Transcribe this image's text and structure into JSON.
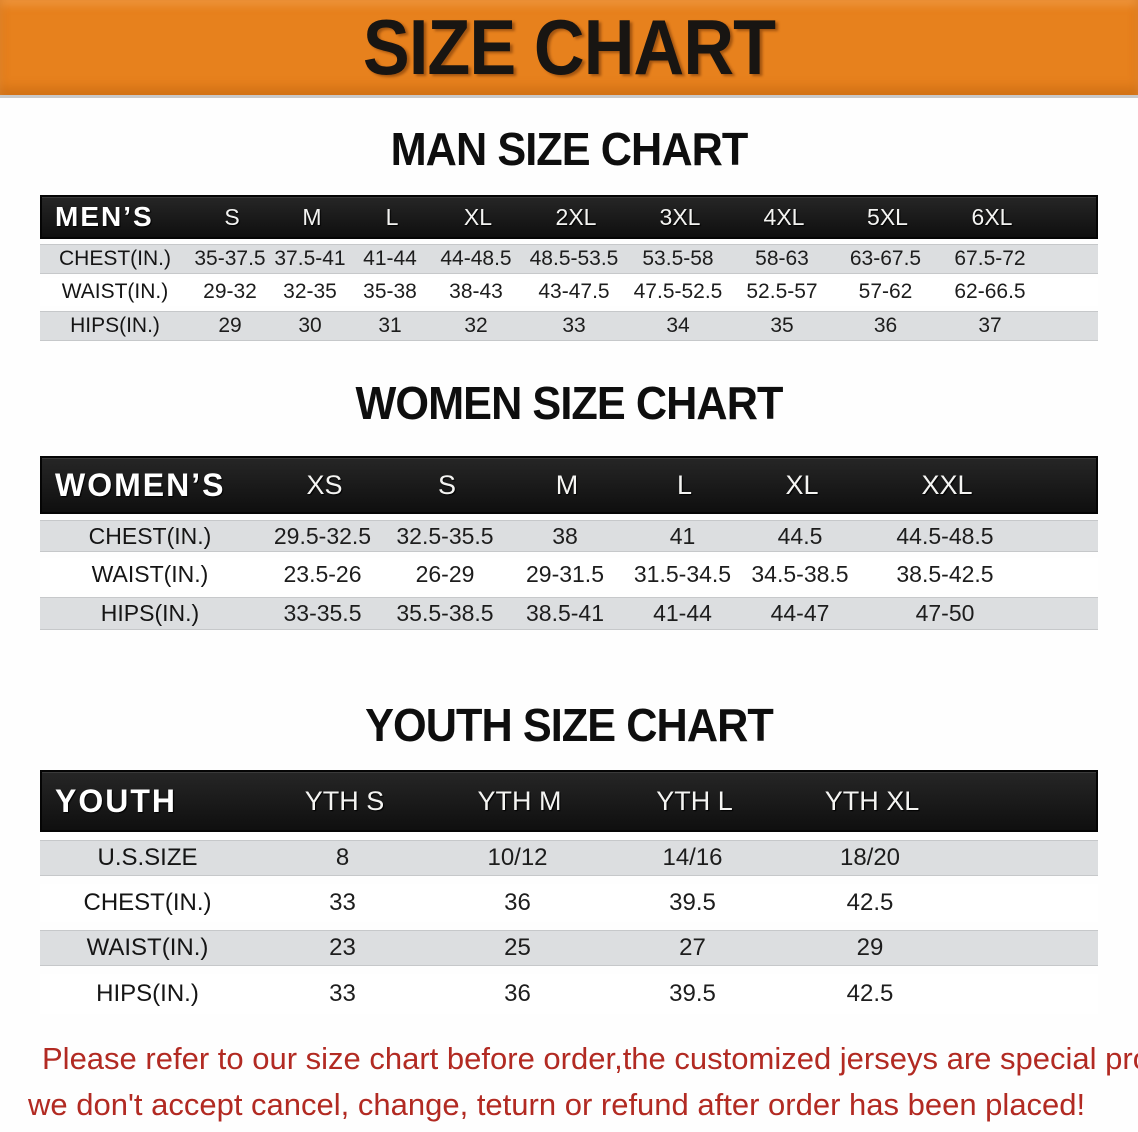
{
  "banner": {
    "title": "SIZE CHART",
    "bg_color": "#e7811d"
  },
  "sections": [
    {
      "heading": "MAN SIZE CHART",
      "corner": "MEN’S",
      "columns": [
        "S",
        "M",
        "L",
        "XL",
        "2XL",
        "3XL",
        "4XL",
        "5XL",
        "6XL"
      ],
      "rows": [
        {
          "label": "CHEST(IN.)",
          "values": [
            "35-37.5",
            "37.5-41",
            "41-44",
            "44-48.5",
            "48.5-53.5",
            "53.5-58",
            "58-63",
            "63-67.5",
            "67.5-72"
          ]
        },
        {
          "label": "WAIST(IN.)",
          "values": [
            "29-32",
            "32-35",
            "35-38",
            "38-43",
            "43-47.5",
            "47.5-52.5",
            "52.5-57",
            "57-62",
            "62-66.5"
          ]
        },
        {
          "label": "HIPS(IN.)",
          "values": [
            "29",
            "30",
            "31",
            "32",
            "33",
            "34",
            "35",
            "36",
            "37"
          ]
        }
      ]
    },
    {
      "heading": "WOMEN SIZE CHART",
      "corner": "WOMEN’S",
      "columns": [
        "XS",
        "S",
        "M",
        "L",
        "XL",
        "XXL"
      ],
      "rows": [
        {
          "label": "CHEST(IN.)",
          "values": [
            "29.5-32.5",
            "32.5-35.5",
            "38",
            "41",
            "44.5",
            "44.5-48.5"
          ]
        },
        {
          "label": "WAIST(IN.)",
          "values": [
            "23.5-26",
            "26-29",
            "29-31.5",
            "31.5-34.5",
            "34.5-38.5",
            "38.5-42.5"
          ]
        },
        {
          "label": "HIPS(IN.)",
          "values": [
            "33-35.5",
            "35.5-38.5",
            "38.5-41",
            "41-44",
            "44-47",
            "47-50"
          ]
        }
      ]
    },
    {
      "heading": "YOUTH SIZE CHART",
      "corner": "YOUTH",
      "columns": [
        "YTH S",
        "YTH M",
        "YTH L",
        "YTH XL"
      ],
      "rows": [
        {
          "label": "U.S.SIZE",
          "values": [
            "8",
            "10/12",
            "14/16",
            "18/20"
          ]
        },
        {
          "label": "CHEST(IN.)",
          "values": [
            "33",
            "36",
            "39.5",
            "42.5"
          ]
        },
        {
          "label": "WAIST(IN.)",
          "values": [
            "23",
            "25",
            "27",
            "29"
          ]
        },
        {
          "label": "HIPS(IN.)",
          "values": [
            "33",
            "36",
            "39.5",
            "42.5"
          ]
        }
      ]
    }
  ],
  "footer": {
    "line1": "Please refer to our size chart before order,the customized jerseys are special products,",
    "line2": "we don't accept cancel, change, teturn or refund after order has been placed!",
    "text_color": "#b22a22"
  }
}
